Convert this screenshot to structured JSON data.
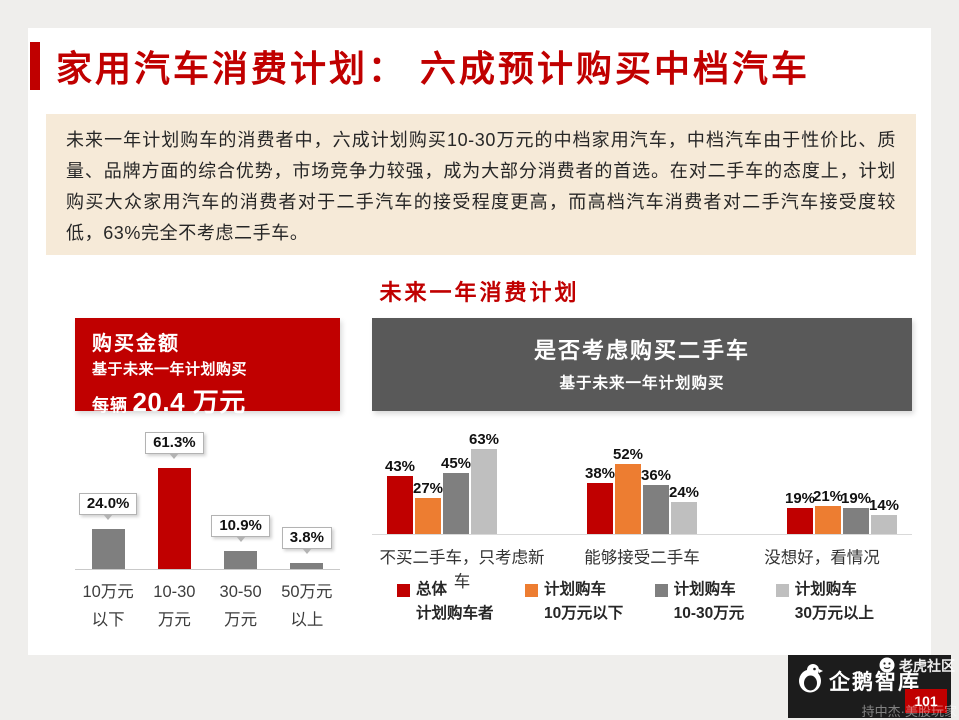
{
  "header": {
    "title": "家用汽车消费计划： 六成预计购买中档汽车"
  },
  "summary": {
    "text": "未来一年计划购车的消费者中，六成计划购买10-30万元的中档家用汽车，中档汽车由于性价比、质量、品牌方面的综合优势，市场竞争力较强，成为大部分消费者的首选。在对二手车的态度上，计划购买大众家用汽车的消费者对于二手汽车的接受程度更高，而高档汽车消费者对二手汽车接受度较低，63%完全不考虑二手车。"
  },
  "section": {
    "title": "未来一年消费计划"
  },
  "left_panel": {
    "title": "购买金额",
    "subtitle": "基于未来一年计划购买",
    "metric_prefix": "每辆",
    "metric_value": "20.4 万元"
  },
  "right_panel": {
    "title": "是否考虑购买二手车",
    "subtitle": "基于未来一年计划购买"
  },
  "chart_data": [
    {
      "type": "bar",
      "title": "购买金额（基于未来一年计划购买）",
      "categories": [
        [
          "10万元",
          "以下"
        ],
        [
          "10-30",
          "万元"
        ],
        [
          "30-50",
          "万元"
        ],
        [
          "50万元",
          "以上"
        ]
      ],
      "values": [
        24.0,
        61.3,
        10.9,
        3.8
      ],
      "value_labels": [
        "24.0%",
        "61.3%",
        "10.9%",
        "3.8%"
      ],
      "bar_colors": [
        "#7f7f7f",
        "#c00000",
        "#7f7f7f",
        "#7f7f7f"
      ],
      "xlabel": "",
      "ylabel": "",
      "ylim": [
        0,
        70
      ],
      "unit": "%",
      "grid": false
    },
    {
      "type": "bar",
      "title": "是否考虑购买二手车（基于未来一年计划购买）",
      "categories": [
        "不买二手车，只考虑新车",
        "能够接受二手车",
        "没想好，看情况"
      ],
      "series": [
        {
          "name": "总体计划购车者",
          "color": "#c00000",
          "values": [
            43,
            38,
            19
          ]
        },
        {
          "name": "计划购车10万元以下",
          "color": "#ed7d31",
          "values": [
            27,
            52,
            21
          ]
        },
        {
          "name": "计划购车10-30万元",
          "color": "#7f7f7f",
          "values": [
            45,
            36,
            19
          ]
        },
        {
          "name": "计划购车30万元以上",
          "color": "#bfbfbf",
          "values": [
            63,
            24,
            14
          ]
        }
      ],
      "xlabel": "",
      "ylabel": "",
      "ylim": [
        0,
        70
      ],
      "unit": "%",
      "grid": false,
      "legend_position": "bottom"
    }
  ],
  "legend": [
    {
      "line1": "总体",
      "line2": "计划购车者",
      "color": "#c00000"
    },
    {
      "line1": "计划购车",
      "line2": "10万元以下",
      "color": "#ed7d31"
    },
    {
      "line1": "计划购车",
      "line2": "10-30万元",
      "color": "#7f7f7f"
    },
    {
      "line1": "计划购车",
      "line2": "30万元以上",
      "color": "#bfbfbf"
    }
  ],
  "colors": {
    "accent_red": "#c00000",
    "summary_bg": "#f6ead8",
    "header_gray": "#595959",
    "orange": "#ed7d31",
    "gray": "#7f7f7f",
    "light_gray": "#bfbfbf"
  },
  "footer": {
    "brand": "企鹅智库",
    "page_number": "101",
    "watermark_top": "老虎社区",
    "watermark_bottom": "持中杰·美股玩家"
  }
}
